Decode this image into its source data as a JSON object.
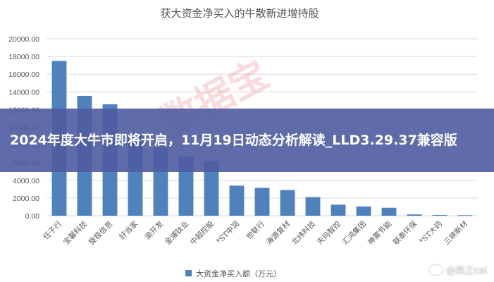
{
  "colors": {
    "bar": "#4f81bd",
    "grid": "#d9d9d9",
    "overlay": "#4e5ca0",
    "watermark": "#e25a5a"
  },
  "watermark_text": "数据宝",
  "overlay": {
    "headline": "2024年度大牛市即将开启，11月19日动态分析解读_LLD3.29.37兼容版"
  },
  "credit": {
    "text": "@英之cai",
    "icon": "weibo-eye-icon"
  },
  "chart_data": {
    "type": "bar",
    "title": "获大资金净买入的牛散新进增持股",
    "categories": [
      "任子行",
      "宝馨科技",
      "旋极信息",
      "好当家",
      "渝开发",
      "金浦钛业",
      "中超控股",
      "*ST中润",
      "世联行",
      "海源复材",
      "北纬科技",
      "天玛智控",
      "汇鸿集团",
      "神雾节能",
      "联泰环保",
      "*ST大药",
      "三峡新材"
    ],
    "series": [
      {
        "name": "大资金净买入额（万元）",
        "values": [
          17500,
          13550,
          12600,
          9200,
          7700,
          6700,
          6200,
          3400,
          3150,
          2900,
          2100,
          1250,
          1050,
          900,
          150,
          80,
          60
        ]
      }
    ],
    "yticks": [
      "0.00",
      "2000.00",
      "4000.00",
      "6000.00",
      "8000.00",
      "10000.00",
      "12000.00",
      "14000.00",
      "16000.00",
      "18000.00",
      "20000.00"
    ],
    "ylim": [
      0,
      20000
    ],
    "grid": true,
    "legend_position": "bottom"
  }
}
